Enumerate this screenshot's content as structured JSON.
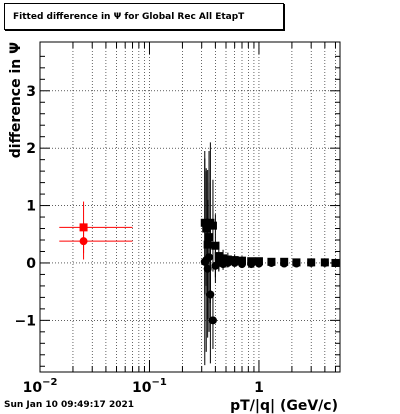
{
  "chart_data": {
    "type": "scatter",
    "title": "Fitted difference in  Ψ  for Global Rec All EtapT",
    "xlabel": "pT/|q| (GeV/c)",
    "ylabel": "difference in  Ψ",
    "x_scale": "log",
    "xlim": [
      0.01,
      5.5
    ],
    "ylim": [
      -1.9,
      3.85
    ],
    "grid": true,
    "x_ticks": [
      {
        "value": 0.01,
        "base": "10",
        "exp": "−2"
      },
      {
        "value": 0.1,
        "base": "10",
        "exp": "−1"
      },
      {
        "value": 1,
        "base": "1",
        "exp": ""
      }
    ],
    "y_ticks": [
      -1,
      0,
      1,
      2,
      3
    ],
    "series": [
      {
        "color": "#000000",
        "marker_square": {
          "x": [
            0.32,
            0.33,
            0.34,
            0.35,
            0.36,
            0.38,
            0.4,
            0.43,
            0.47,
            0.52,
            0.6,
            0.7,
            0.85,
            1.0,
            1.3,
            1.7,
            2.2,
            3.0,
            4.0,
            5.0
          ],
          "y": [
            0.7,
            0.6,
            0.32,
            0.45,
            0.7,
            0.65,
            0.3,
            0.12,
            0.08,
            0.06,
            0.05,
            0.04,
            0.03,
            0.03,
            0.02,
            0.02,
            0.01,
            0.01,
            0.01,
            0.0
          ],
          "yerr": [
            1.25,
            1.0,
            1.3,
            1.5,
            1.4,
            0.8,
            0.55,
            0.25,
            0.15,
            0.12,
            0.1,
            0.08,
            0.06,
            0.05,
            0.05,
            0.04,
            0.04,
            0.04,
            0.04,
            0.04
          ]
        },
        "marker_circle": {
          "x": [
            0.32,
            0.33,
            0.34,
            0.35,
            0.36,
            0.38,
            0.4,
            0.43,
            0.47,
            0.52,
            0.6,
            0.7,
            0.85,
            1.0,
            1.3,
            1.7,
            2.2,
            3.0,
            4.0,
            5.0
          ],
          "y": [
            0.02,
            0.05,
            -0.1,
            0.1,
            -0.55,
            -1.0,
            -0.05,
            0.0,
            -0.02,
            0.0,
            0.0,
            -0.02,
            -0.02,
            -0.01,
            0.0,
            -0.01,
            -0.01,
            0.0,
            0.0,
            0.0
          ],
          "yerr": [
            1.8,
            1.6,
            1.2,
            1.3,
            1.2,
            0.5,
            0.3,
            0.15,
            0.1,
            0.08,
            0.06,
            0.05,
            0.05,
            0.05,
            0.04,
            0.04,
            0.04,
            0.04,
            0.04,
            0.04
          ]
        }
      },
      {
        "color": "#ff0000",
        "marker_square": {
          "x": [
            0.025
          ],
          "y": [
            0.62
          ],
          "yerr": [
            0.45
          ],
          "xerr_low": [
            0.01
          ],
          "xerr_high": [
            0.045
          ]
        },
        "marker_circle": {
          "x": [
            0.025
          ],
          "y": [
            0.38
          ],
          "yerr": [
            0.32
          ],
          "xerr_low": [
            0.01
          ],
          "xerr_high": [
            0.045
          ]
        }
      }
    ],
    "timestamp": "Sun Jan 10 09:49:17 2021"
  }
}
